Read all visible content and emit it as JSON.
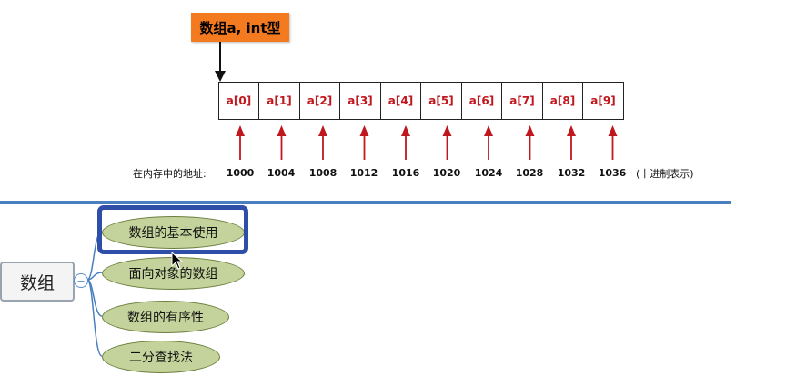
{
  "diagram": {
    "title": "数组a, int型",
    "cells": [
      "a[0]",
      "a[1]",
      "a[2]",
      "a[3]",
      "a[4]",
      "a[5]",
      "a[6]",
      "a[7]",
      "a[8]",
      "a[9]"
    ],
    "address_prefix": "在内存中的地址:",
    "addresses": [
      "1000",
      "1004",
      "1008",
      "1012",
      "1016",
      "1020",
      "1024",
      "1028",
      "1032",
      "1036"
    ],
    "address_suffix": "(十进制表示)"
  },
  "mindmap": {
    "root": "数组",
    "collapse_symbol": "−",
    "children": [
      "数组的基本使用",
      "面向对象的数组",
      "数组的有序性",
      "二分查找法"
    ]
  },
  "colors": {
    "title_box": "#f47a20",
    "cell_text": "#c0161d",
    "arrow": "#c0161d",
    "divider": "#4a7fbf",
    "node_fill": "#c4d29c",
    "selection": "#2f4ea8"
  }
}
